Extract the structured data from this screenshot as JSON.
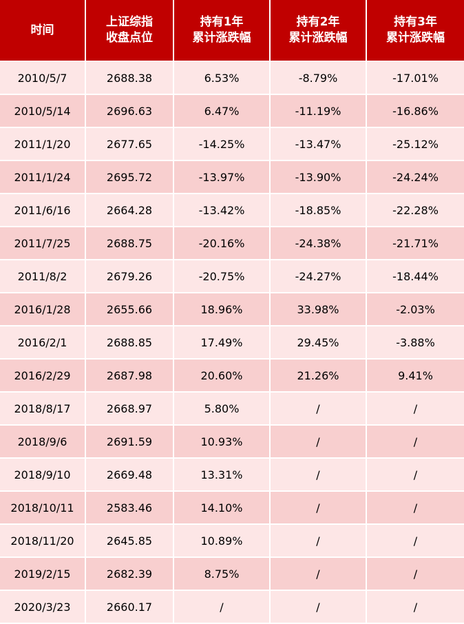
{
  "header": [
    "时间",
    "上证综指\n收盘点位",
    "持有1年\n累计涨跌幅",
    "持有2年\n累计涨跌幅",
    "持有3年\n累计涨跌幅"
  ],
  "rows": [
    [
      "2010/5/7",
      "2688.38",
      "6.53%",
      "-8.79%",
      "-17.01%"
    ],
    [
      "2010/5/14",
      "2696.63",
      "6.47%",
      "-11.19%",
      "-16.86%"
    ],
    [
      "2011/1/20",
      "2677.65",
      "-14.25%",
      "-13.47%",
      "-25.12%"
    ],
    [
      "2011/1/24",
      "2695.72",
      "-13.97%",
      "-13.90%",
      "-24.24%"
    ],
    [
      "2011/6/16",
      "2664.28",
      "-13.42%",
      "-18.85%",
      "-22.28%"
    ],
    [
      "2011/7/25",
      "2688.75",
      "-20.16%",
      "-24.38%",
      "-21.71%"
    ],
    [
      "2011/8/2",
      "2679.26",
      "-20.75%",
      "-24.27%",
      "-18.44%"
    ],
    [
      "2016/1/28",
      "2655.66",
      "18.96%",
      "33.98%",
      "-2.03%"
    ],
    [
      "2016/2/1",
      "2688.85",
      "17.49%",
      "29.45%",
      "-3.88%"
    ],
    [
      "2016/2/29",
      "2687.98",
      "20.60%",
      "21.26%",
      "9.41%"
    ],
    [
      "2018/8/17",
      "2668.97",
      "5.80%",
      "/",
      "/"
    ],
    [
      "2018/9/6",
      "2691.59",
      "10.93%",
      "/",
      "/"
    ],
    [
      "2018/9/10",
      "2669.48",
      "13.31%",
      "/",
      "/"
    ],
    [
      "2018/10/11",
      "2583.46",
      "14.10%",
      "/",
      "/"
    ],
    [
      "2018/11/20",
      "2645.85",
      "10.89%",
      "/",
      "/"
    ],
    [
      "2019/2/15",
      "2682.39",
      "8.75%",
      "/",
      "/"
    ],
    [
      "2020/3/23",
      "2660.17",
      "/",
      "/",
      "/"
    ]
  ],
  "colors": {
    "header_bg": "#c00000",
    "header_text": "#ffffff",
    "row_light": "#fde6e6",
    "row_dark": "#f8cfcf"
  }
}
